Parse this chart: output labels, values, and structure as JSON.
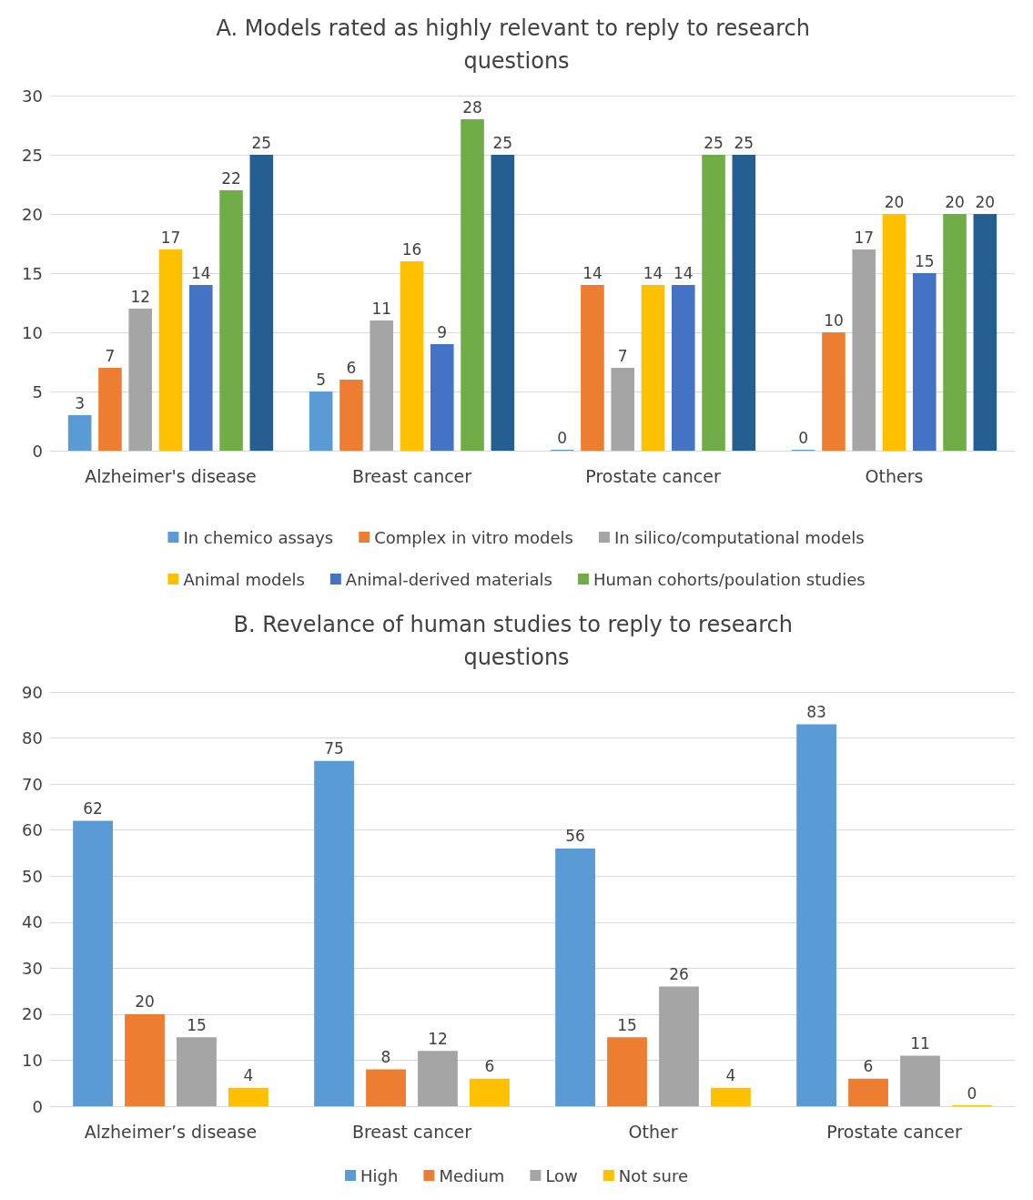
{
  "chart_data": [
    {
      "type": "bar",
      "title": "A. Models rated as highly relevant to reply to research questions",
      "categories": [
        "Alzheimer's disease",
        "Breast cancer",
        "Prostate cancer",
        "Others"
      ],
      "series": [
        {
          "name": "In chemico assays",
          "color": "#5b9bd5",
          "values": [
            3,
            5,
            0,
            0
          ]
        },
        {
          "name": "Complex in vitro models",
          "color": "#ed7d31",
          "values": [
            7,
            6,
            14,
            10
          ]
        },
        {
          "name": "In silico/computational models",
          "color": "#a5a5a5",
          "values": [
            12,
            11,
            7,
            17
          ]
        },
        {
          "name": "Animal models",
          "color": "#ffc000",
          "values": [
            17,
            16,
            14,
            20
          ]
        },
        {
          "name": "Animal-derived materials",
          "color": "#4472c4",
          "values": [
            14,
            9,
            14,
            15
          ]
        },
        {
          "name": "Human cohorts/poulation studies",
          "color": "#70ad47",
          "values": [
            22,
            28,
            25,
            20
          ]
        },
        {
          "color": "#255e91",
          "values": [
            25,
            25,
            25,
            20
          ]
        }
      ],
      "ylim": [
        0,
        30
      ],
      "yticks": [
        0,
        5,
        10,
        15,
        20,
        25,
        30
      ],
      "grid": "y",
      "legend": "bottom",
      "data_labels": true
    },
    {
      "type": "bar",
      "title": "B. Revelance of human studies to reply to research questions",
      "categories": [
        "Alzheimer’s disease",
        "Breast cancer",
        "Other",
        "Prostate cancer"
      ],
      "series": [
        {
          "name": "High",
          "color": "#5b9bd5",
          "values": [
            62,
            75,
            56,
            83
          ]
        },
        {
          "name": "Medium",
          "color": "#ed7d31",
          "values": [
            20,
            8,
            15,
            6
          ]
        },
        {
          "name": "Low",
          "color": "#a5a5a5",
          "values": [
            15,
            12,
            26,
            11
          ]
        },
        {
          "name": "Not sure",
          "color": "#ffc000",
          "values": [
            4,
            6,
            4,
            0
          ]
        }
      ],
      "ylim": [
        0,
        90
      ],
      "yticks": [
        0,
        10,
        20,
        30,
        40,
        50,
        60,
        70,
        80,
        90
      ],
      "grid": "y",
      "legend": "bottom",
      "data_labels": true
    }
  ]
}
